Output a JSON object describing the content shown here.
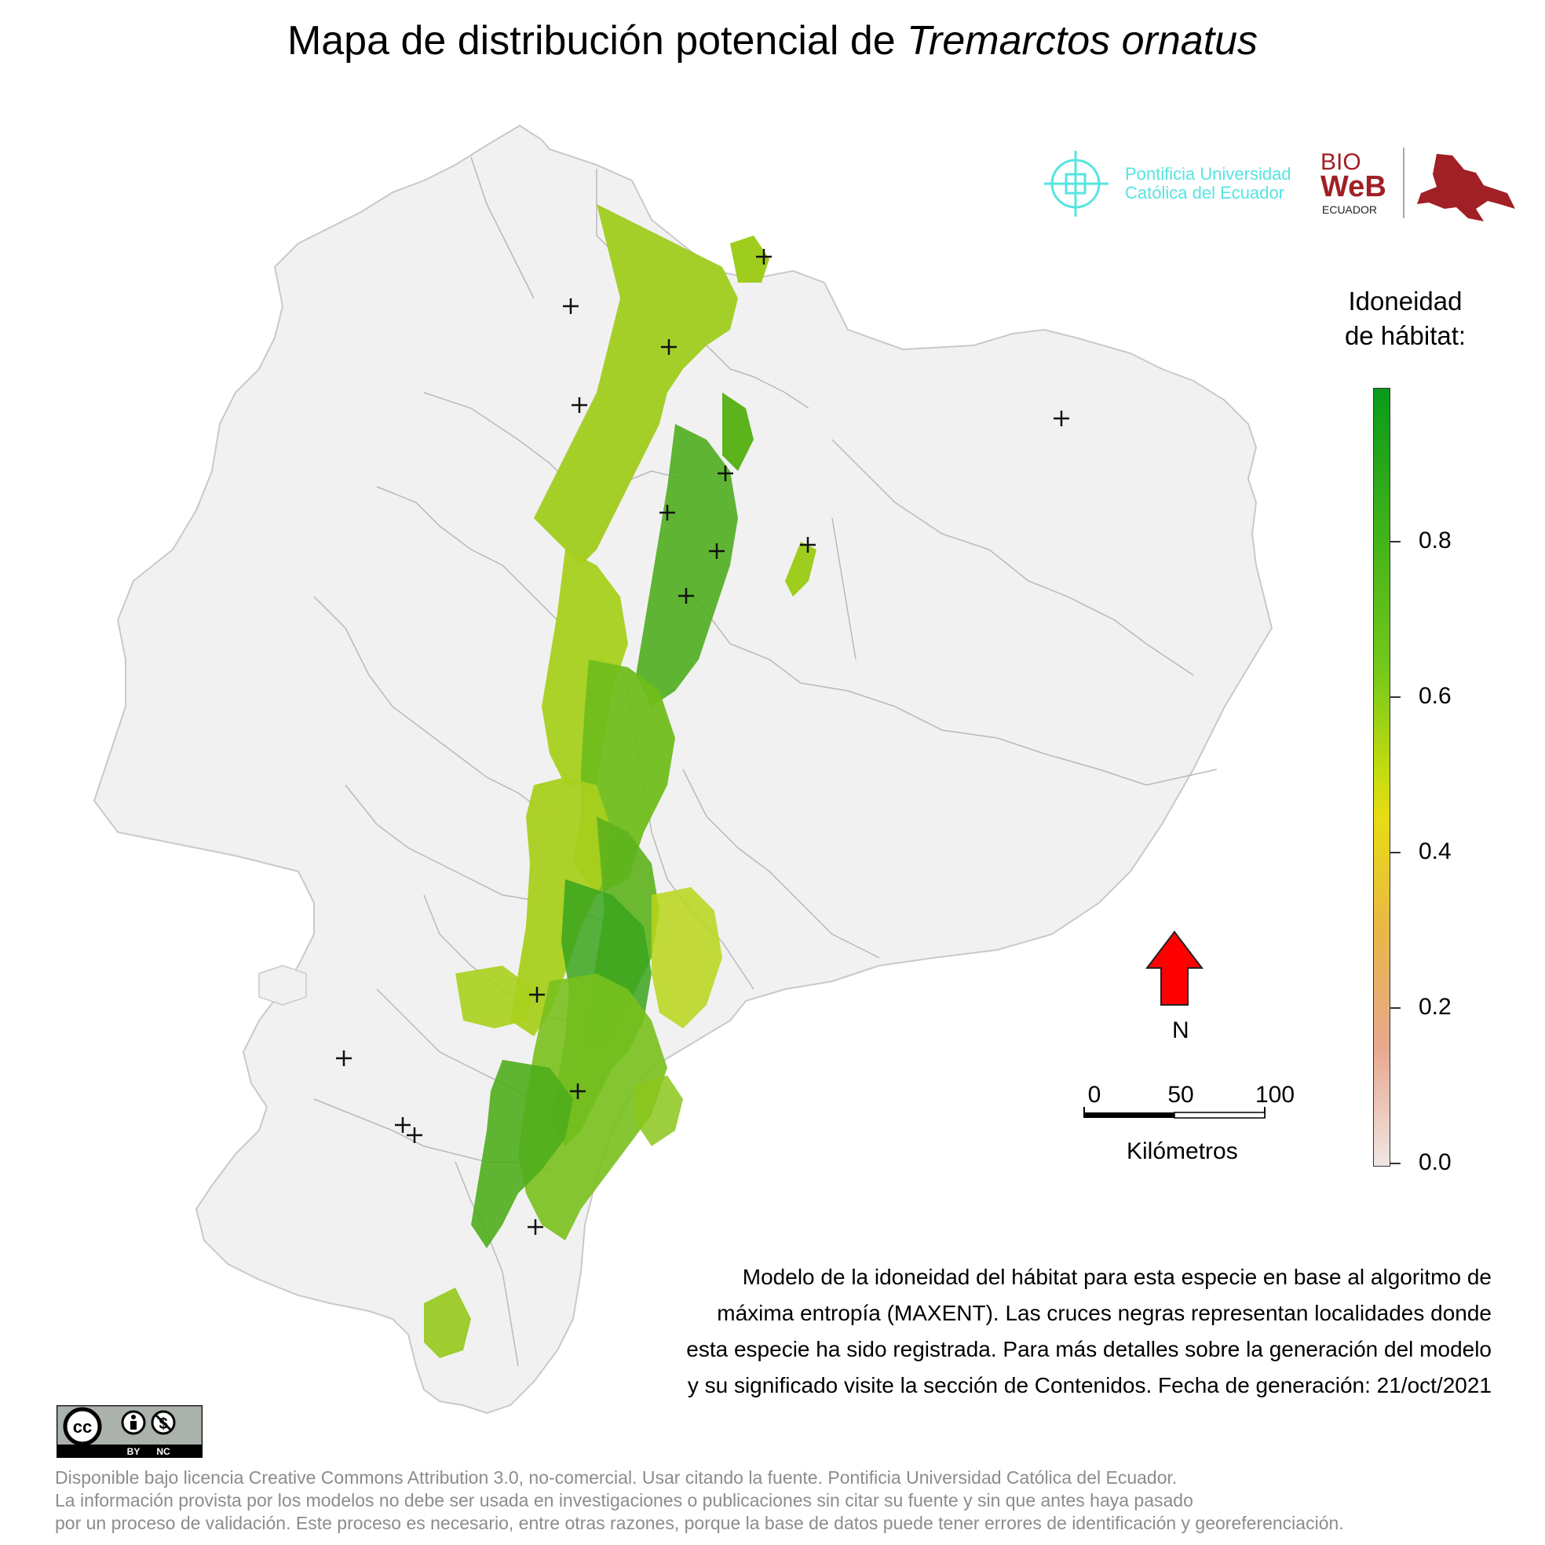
{
  "title": {
    "prefix": "Mapa de distribución potencial de ",
    "species": "Tremarctos ornatus"
  },
  "logos": {
    "puce_line1": "Pontificia Universidad",
    "puce_line2": "Católica del Ecuador",
    "bioweb_line1": "BIO",
    "bioweb_line2": "WeB",
    "bioweb_line3": "ECUADOR",
    "license_by": "BY",
    "license_nc": "NC"
  },
  "legend": {
    "title_line1": "Idoneidad",
    "title_line2": "de hábitat:",
    "ticks": [
      "0.8",
      "0.6",
      "0.4",
      "0.2",
      "0.0"
    ],
    "tick_values": [
      0.8,
      0.6,
      0.4,
      0.2,
      0.0
    ],
    "range": [
      0,
      1
    ],
    "colors": {
      "high": "#0a9a1a",
      "mid_high": "#74c81a",
      "mid": "#e8dc12",
      "low": "#e9b648",
      "min": "#f0e6e2"
    }
  },
  "north_arrow": {
    "label": "N",
    "color": "#ff0000"
  },
  "scale_bar": {
    "labels": [
      "0",
      "50",
      "100"
    ],
    "unit": "Kilómetros"
  },
  "description": {
    "line1": "Modelo de la idoneidad del hábitat para esta especie en base al algoritmo de",
    "line2": "máxima entropía (MAXENT). Las cruces negras representan localidades donde",
    "line3": "esta especie ha sido registrada. Para más detalles sobre la generación del modelo",
    "line4": "y su significado visite la sección de Contenidos. Fecha de generación: 21/oct/2021"
  },
  "footer": {
    "line1": "Disponible bajo licencia Creative Commons Attribution 3.0, no-comercial. Usar citando la fuente. Pontificia Universidad Católica del Ecuador.",
    "line2": "La información provista por los modelos no debe ser usada en investigaciones o publicaciones sin citar su fuente y sin que antes haya pasado",
    "line3": "por un proceso de validación. Este proceso es necesario, entre otras razones, porque la base de datos puede tener errores de identificación y georeferenciación."
  },
  "colors": {
    "land": "#f1f1f1",
    "borders": "#b9b9b9",
    "habitat_dark": "#33a41c",
    "habitat_mid": "#77c41c",
    "habitat_light": "#a9d21a",
    "puce": "#55e5e0",
    "bioweb": "#a02025"
  }
}
